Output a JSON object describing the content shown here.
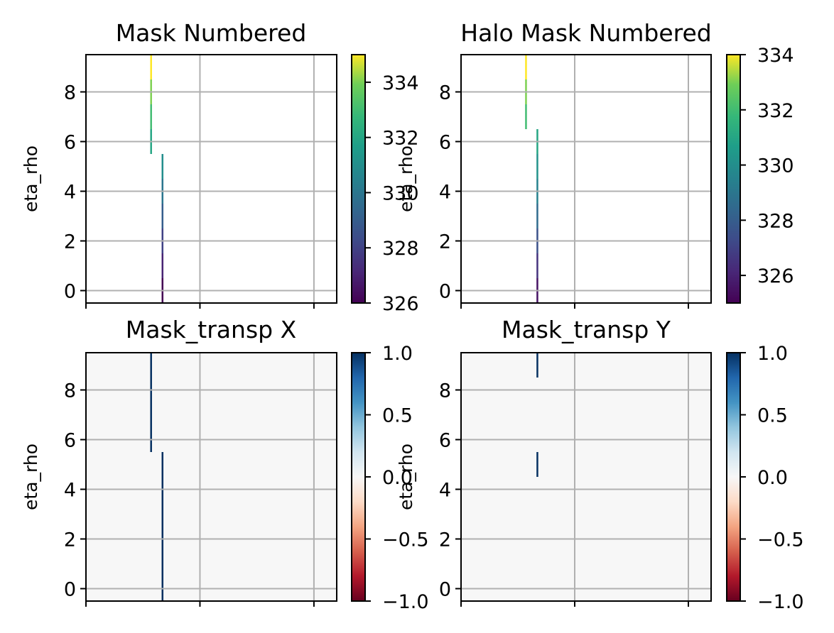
{
  "chart_data": [
    {
      "type": "heatmap",
      "title": "Mask Numbered",
      "xlabel": "",
      "ylabel": "eta_rho",
      "ylim": [
        -0.5,
        9.5
      ],
      "yticks": [
        "0",
        "2",
        "4",
        "6",
        "8"
      ],
      "grid": true,
      "colormap": "viridis",
      "colorbar": {
        "range": [
          326,
          335
        ],
        "ticks": [
          "326",
          "328",
          "330",
          "332",
          "334"
        ]
      },
      "cells": [
        {
          "x": 0,
          "y": 0,
          "value": 326
        },
        {
          "x": 0,
          "y": 1,
          "value": 327
        },
        {
          "x": 0,
          "y": 2,
          "value": 328
        },
        {
          "x": 0,
          "y": 3,
          "value": 329
        },
        {
          "x": 0,
          "y": 4,
          "value": 330
        },
        {
          "x": 0,
          "y": 5,
          "value": 331
        },
        {
          "x": -0.1,
          "y": 6,
          "value": 332
        },
        {
          "x": -0.1,
          "y": 7,
          "value": 333
        },
        {
          "x": -0.1,
          "y": 8,
          "value": 334
        },
        {
          "x": -0.1,
          "y": 9,
          "value": 335
        }
      ]
    },
    {
      "type": "heatmap",
      "title": "Halo Mask Numbered",
      "xlabel": "",
      "ylabel": "eta_rho",
      "ylim": [
        -0.5,
        9.5
      ],
      "yticks": [
        "0",
        "2",
        "4",
        "6",
        "8"
      ],
      "grid": true,
      "colormap": "viridis",
      "colorbar": {
        "range": [
          325,
          334
        ],
        "ticks": [
          "326",
          "328",
          "330",
          "332",
          "334"
        ]
      },
      "cells": [
        {
          "x": 0,
          "y": 0,
          "value": 325.5
        },
        {
          "x": 0,
          "y": 1,
          "value": 326.5
        },
        {
          "x": 0,
          "y": 2,
          "value": 327.5
        },
        {
          "x": 0,
          "y": 3,
          "value": 328.5
        },
        {
          "x": 0,
          "y": 4,
          "value": 329.5
        },
        {
          "x": 0,
          "y": 5,
          "value": 330.2
        },
        {
          "x": 0,
          "y": 6,
          "value": 331
        },
        {
          "x": -0.1,
          "y": 7,
          "value": 332
        },
        {
          "x": -0.1,
          "y": 8,
          "value": 333
        },
        {
          "x": -0.1,
          "y": 9,
          "value": 334
        }
      ]
    },
    {
      "type": "heatmap",
      "title": "Mask_transp X",
      "xlabel": "",
      "ylabel": "eta_rho",
      "ylim": [
        -0.5,
        9.5
      ],
      "yticks": [
        "0",
        "2",
        "4",
        "6",
        "8"
      ],
      "grid": true,
      "colormap": "RdBu",
      "background_value": 0,
      "colorbar": {
        "range": [
          -1,
          1
        ],
        "ticks": [
          "−1.0",
          "−0.5",
          "0.0",
          "0.5",
          "1.0"
        ]
      },
      "cells": [
        {
          "x": 0,
          "y": 0,
          "value": 1
        },
        {
          "x": 0,
          "y": 1,
          "value": 1
        },
        {
          "x": 0,
          "y": 2,
          "value": 1
        },
        {
          "x": 0,
          "y": 3,
          "value": 1
        },
        {
          "x": 0,
          "y": 4,
          "value": 1
        },
        {
          "x": 0,
          "y": 5,
          "value": 1
        },
        {
          "x": -0.1,
          "y": 6,
          "value": 1
        },
        {
          "x": -0.1,
          "y": 7,
          "value": 1
        },
        {
          "x": -0.1,
          "y": 8,
          "value": 1
        },
        {
          "x": -0.1,
          "y": 9,
          "value": 1
        }
      ]
    },
    {
      "type": "heatmap",
      "title": "Mask_transp Y",
      "xlabel": "",
      "ylabel": "eta_rho",
      "ylim": [
        -0.5,
        9.5
      ],
      "yticks": [
        "0",
        "2",
        "4",
        "6",
        "8"
      ],
      "grid": true,
      "colormap": "RdBu",
      "background_value": 0,
      "colorbar": {
        "range": [
          -1,
          1
        ],
        "ticks": [
          "−1.0",
          "−0.5",
          "0.0",
          "0.5",
          "1.0"
        ]
      },
      "cells": [
        {
          "x": 0,
          "y": 5,
          "value": 1
        },
        {
          "x": 0,
          "y": 9,
          "value": 1
        }
      ]
    }
  ]
}
